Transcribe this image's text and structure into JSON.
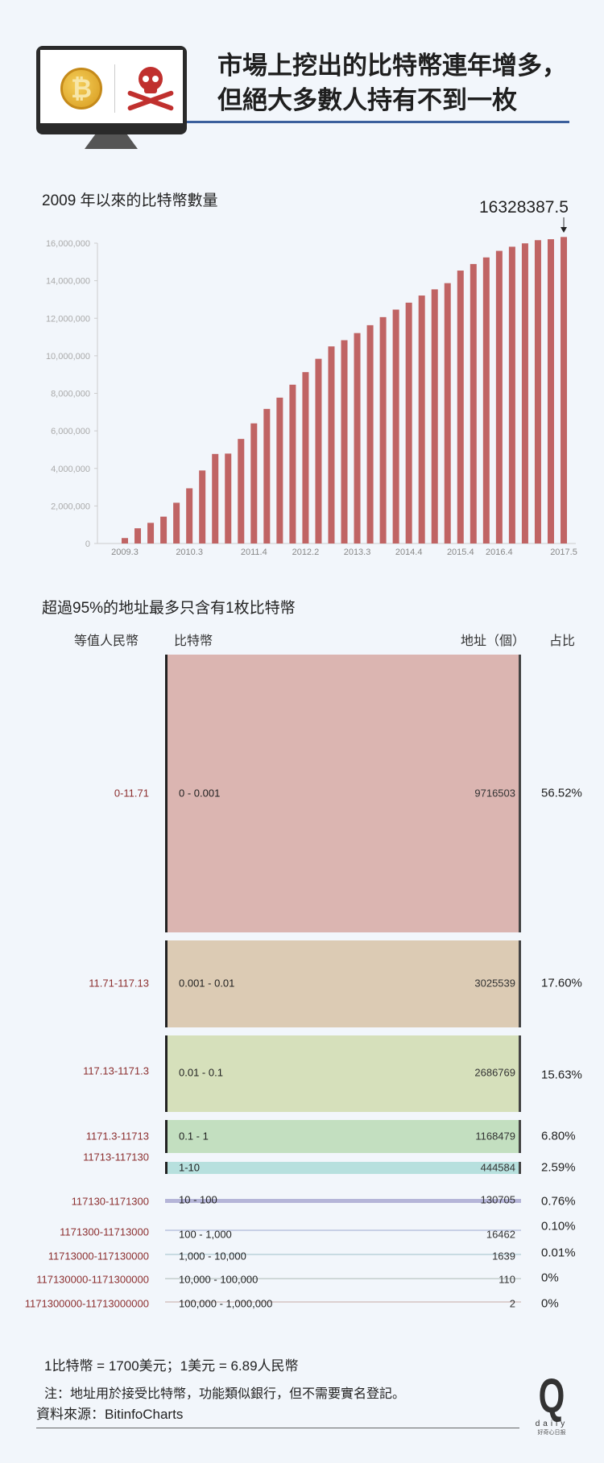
{
  "header": {
    "title_line1": "市場上挖出的比特幣連年增多，",
    "title_line2": "但絕大多數人持有不到一枚",
    "icons": [
      "bitcoin-coin-icon",
      "skull-crossbones-icon",
      "monitor-icon"
    ],
    "accent": "#3b5f9c"
  },
  "chart_data": [
    {
      "type": "bar",
      "title": "2009 年以來的比特幣數量",
      "annotation": "16328387.5",
      "categories": [
        "2009.3",
        "",
        "",
        "",
        "",
        "2010.3",
        "",
        "",
        "",
        "",
        "2011.4",
        "",
        "",
        "",
        "2012.2",
        "",
        "",
        "",
        "2013.3",
        "",
        "",
        "",
        "2014.4",
        "",
        "",
        "",
        "2015.4",
        "",
        "",
        "2016.4",
        "",
        "",
        "",
        "",
        "2017.5"
      ],
      "values": [
        290000,
        810000,
        1100000,
        1430000,
        2170000,
        2940000,
        3890000,
        4770000,
        4790000,
        5570000,
        6400000,
        7170000,
        7770000,
        8460000,
        9130000,
        9840000,
        10500000,
        10830000,
        11210000,
        11630000,
        12060000,
        12460000,
        12830000,
        13210000,
        13540000,
        13870000,
        14540000,
        14890000,
        15240000,
        15590000,
        15810000,
        15990000,
        16160000,
        16210000,
        16328387.5
      ],
      "yticks": [
        "0",
        "2,000,000",
        "4,000,000",
        "6,000,000",
        "8,000,000",
        "10,000,000",
        "12,000,000",
        "14,000,000",
        "16,000,000"
      ],
      "ylim": [
        0,
        16000000
      ],
      "color": "#c06464",
      "grid": false
    },
    {
      "type": "table",
      "title": "超過95%的地址最多只含有1枚比特幣",
      "columns": [
        "等值人民幣",
        "比特幣",
        "地址（個）",
        "占比"
      ],
      "rows": [
        {
          "rmb": "0-11.71",
          "btc": "0 - 0.001",
          "count": "9716503",
          "pct": "56.52%",
          "color": "#dbb5b1"
        },
        {
          "rmb": "11.71-117.13",
          "btc": "0.001 - 0.01",
          "count": "3025539",
          "pct": "17.60%",
          "color": "#dccbb4"
        },
        {
          "rmb": "117.13-1171.3",
          "btc": "0.01 - 0.1",
          "count": "2686769",
          "pct": "15.63%",
          "color": "#d6e0bb"
        },
        {
          "rmb": "1171.3-11713",
          "btc": "0.1 - 1",
          "count": "1168479",
          "pct": "6.80%",
          "color": "#c3dfc0"
        },
        {
          "rmb": "11713-117130",
          "btc": "1-10",
          "count": "444584",
          "pct": "2.59%",
          "color": "#b7e0de"
        },
        {
          "rmb": "117130-1171300",
          "btc": "10 - 100",
          "count": "130705",
          "pct": "0.76%",
          "color": "#b5b5d8"
        },
        {
          "rmb": "1171300-11713000",
          "btc": "100 - 1,000",
          "count": "16462",
          "pct": "0.10%",
          "color": "#c8d0e6"
        },
        {
          "rmb": "11713000-117130000",
          "btc": "1,000 - 10,000",
          "count": "1639",
          "pct": "0.01%",
          "color": "#c8dbe2"
        },
        {
          "rmb": "117130000-1171300000",
          "btc": "10,000 - 100,000",
          "count": "110",
          "pct": "0%",
          "color": "#cfd8d8"
        },
        {
          "rmb": "1171300000-11713000000",
          "btc": "100,000 - 1,000,000",
          "count": "2",
          "pct": "0%",
          "color": "#dcd0d0"
        }
      ]
    }
  ],
  "footer": {
    "rate": "1比特幣 = 1700美元；1美元 = 6.89人民幣",
    "note": "注：地址用於接受比特幣，功能類似銀行，但不需要實名登記。",
    "source": "資料來源：BitinfoCharts",
    "logo": "Q daily 好奇心日報"
  }
}
